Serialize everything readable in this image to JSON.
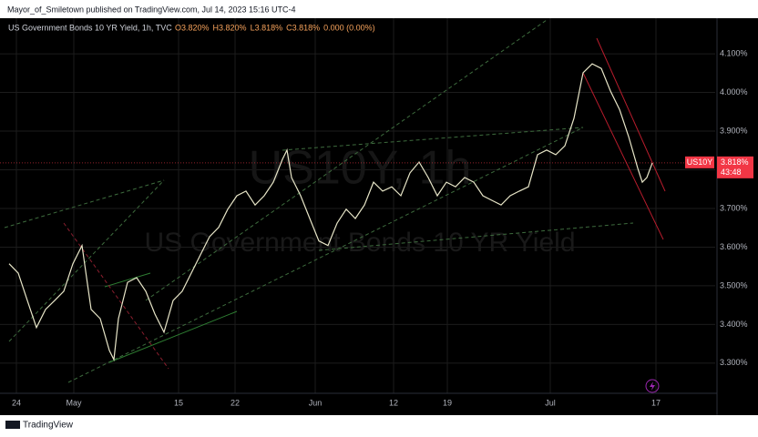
{
  "header": "Mayor_of_Smiletown published on TradingView.com, Jul 14, 2023 15:16 UTC-4",
  "footer": "TradingView",
  "chart_data": {
    "type": "line",
    "title": "US Government Bonds 10 YR Yield, 1h, TVC",
    "ohlc": [
      "O3.820%",
      "H3.820%",
      "L3.818%",
      "C3.818%",
      "0.000 (0.00%)"
    ],
    "watermark": "US10Y, 1h",
    "watermark_subtitle": "US Government Bonds 10 YR Yield",
    "symbol": "US10Y",
    "last_price": 3.818,
    "last_price_label": "3.818%",
    "countdown": "43:48",
    "x": [
      5,
      15,
      25,
      35,
      45,
      55,
      65,
      75,
      85,
      95,
      105,
      115,
      120,
      125,
      135,
      145,
      155,
      165,
      175,
      185,
      195,
      205,
      215,
      225,
      235,
      245,
      255,
      265,
      275,
      285,
      295,
      305,
      310,
      315,
      325,
      335,
      345,
      355,
      365,
      375,
      385,
      395,
      405,
      415,
      425,
      435,
      445,
      455,
      465,
      475,
      485,
      495,
      505,
      515,
      525,
      535,
      545,
      555,
      565,
      575,
      585,
      595,
      605,
      615,
      625,
      635,
      645,
      655,
      665,
      675,
      685,
      695,
      700,
      705,
      711
    ],
    "series": [
      {
        "name": "US10Y",
        "color": "#e8e6c8",
        "values": [
          3.557,
          3.533,
          3.462,
          3.392,
          3.439,
          3.462,
          3.486,
          3.557,
          3.604,
          3.439,
          3.415,
          3.333,
          3.309,
          3.415,
          3.509,
          3.521,
          3.486,
          3.427,
          3.38,
          3.462,
          3.486,
          3.533,
          3.58,
          3.627,
          3.651,
          3.698,
          3.733,
          3.745,
          3.709,
          3.733,
          3.768,
          3.827,
          3.851,
          3.78,
          3.733,
          3.674,
          3.616,
          3.604,
          3.662,
          3.698,
          3.674,
          3.709,
          3.768,
          3.745,
          3.756,
          3.733,
          3.792,
          3.82,
          3.78,
          3.733,
          3.768,
          3.756,
          3.78,
          3.768,
          3.733,
          3.721,
          3.709,
          3.733,
          3.745,
          3.756,
          3.839,
          3.851,
          3.839,
          3.862,
          3.933,
          4.051,
          4.074,
          4.062,
          4.004,
          3.956,
          3.886,
          3.804,
          3.768,
          3.78,
          3.818
        ]
      }
    ],
    "xlim": [
      0,
      780
    ],
    "xticks": [
      {
        "value": 13,
        "label": "24"
      },
      {
        "value": 76,
        "label": "May"
      },
      {
        "value": 191,
        "label": "15"
      },
      {
        "value": 253,
        "label": "22"
      },
      {
        "value": 341,
        "label": "Jun"
      },
      {
        "value": 427,
        "label": "12"
      },
      {
        "value": 486,
        "label": "19"
      },
      {
        "value": 599,
        "label": "Jul"
      },
      {
        "value": 715,
        "label": "17"
      }
    ],
    "ylim": [
      3.222,
      4.192
    ],
    "yticks": [
      {
        "value": 3.3,
        "label": "3.300%"
      },
      {
        "value": 3.4,
        "label": "3.400%"
      },
      {
        "value": 3.5,
        "label": "3.500%"
      },
      {
        "value": 3.6,
        "label": "3.600%"
      },
      {
        "value": 3.7,
        "label": "3.700%"
      },
      {
        "value": 3.8,
        "label": "3.800%"
      },
      {
        "value": 3.9,
        "label": "3.900%"
      },
      {
        "value": 4.0,
        "label": "4.000%"
      },
      {
        "value": 4.1,
        "label": "4.100%"
      }
    ],
    "grid": true
  }
}
